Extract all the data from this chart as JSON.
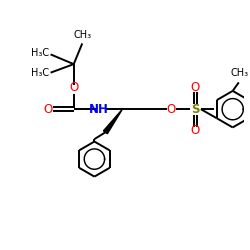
{
  "background_color": "#ffffff",
  "bond_color": "#000000",
  "O_color": "#ff0000",
  "N_color": "#0000ff",
  "S_color": "#808000",
  "C_color": "#000000",
  "figsize": [
    2.5,
    2.5
  ],
  "dpi": 100,
  "xlim": [
    0,
    10
  ],
  "ylim": [
    0,
    10
  ],
  "lw": 1.4,
  "fs": 8.5,
  "fs_small": 7.0
}
